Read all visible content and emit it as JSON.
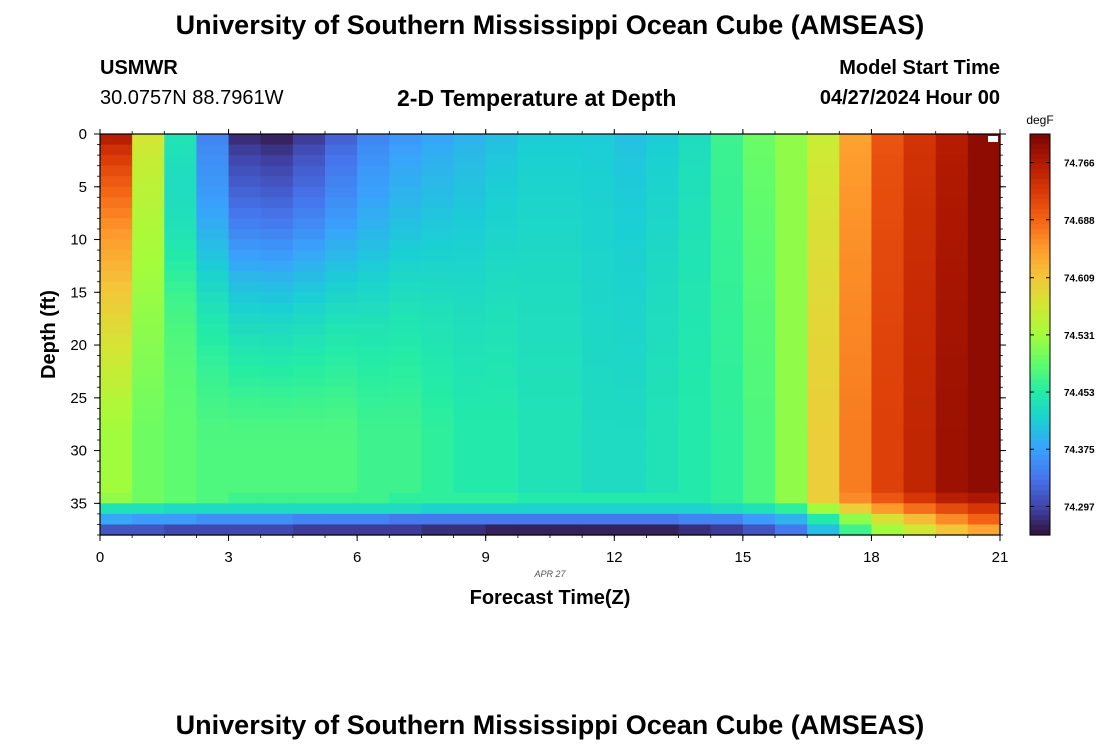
{
  "header": {
    "title": "University of Southern Mississippi Ocean Cube (AMSEAS)",
    "station": "USMWR",
    "coords": "30.0757N  88.7961W",
    "subtitle": "2-D Temperature at Depth",
    "model_start_label": "Model Start Time",
    "model_start_value": "04/27/2024 Hour 00"
  },
  "footer": {
    "title": "University of Southern Mississippi Ocean Cube (AMSEAS)"
  },
  "chart_data": {
    "type": "heatmap",
    "title": "2-D Temperature at Depth",
    "xlabel": "Forecast Time(Z)",
    "ylabel": "Depth (ft)",
    "x_date_label": "APR 27",
    "xlim": [
      0,
      21
    ],
    "ylim": [
      0,
      38
    ],
    "x_ticks": [
      0,
      3,
      6,
      9,
      12,
      15,
      18,
      21
    ],
    "y_ticks": [
      0,
      5,
      10,
      15,
      20,
      25,
      30,
      35
    ],
    "colorbar": {
      "unit": "degF",
      "min": 74.258,
      "max": 74.805,
      "ticks": [
        "74.766",
        "74.688",
        "74.609",
        "74.531",
        "74.453",
        "74.375",
        "74.297"
      ]
    },
    "colormap": [
      "#30123b",
      "#4145ab",
      "#4675ed",
      "#39a2fc",
      "#1bcfd4",
      "#24eca6",
      "#61fc6c",
      "#a4fc3b",
      "#d1e834",
      "#f3c63a",
      "#fe9b2d",
      "#f36315",
      "#d93806",
      "#b11901",
      "#7a0402"
    ],
    "time_steps": [
      0,
      0.75,
      1.5,
      2.25,
      3,
      3.75,
      4.5,
      5.25,
      6,
      6.75,
      7.5,
      8.25,
      9,
      9.75,
      10.5,
      11.25,
      12,
      12.75,
      13.5,
      14.25,
      15,
      15.75,
      16.5,
      17.25,
      18,
      18.75,
      19.5,
      20.25
    ],
    "depth_levels": [
      0,
      34,
      35,
      36,
      37,
      38
    ],
    "profile_top_degF": [
      74.78,
      74.58,
      74.47,
      74.37,
      74.29,
      74.28,
      74.3,
      74.33,
      74.36,
      74.37,
      74.38,
      74.39,
      74.4,
      74.41,
      74.41,
      74.41,
      74.4,
      74.41,
      74.43,
      74.47,
      74.5,
      74.52,
      74.56,
      74.64,
      74.7,
      74.73,
      74.76,
      74.79
    ],
    "profile_bottom_degF": [
      74.53,
      74.5,
      74.49,
      74.48,
      74.48,
      74.48,
      74.48,
      74.48,
      74.47,
      74.47,
      74.46,
      74.45,
      74.45,
      74.44,
      74.44,
      74.43,
      74.43,
      74.44,
      74.45,
      74.46,
      74.48,
      74.52,
      74.6,
      74.67,
      74.72,
      74.75,
      74.78,
      74.79
    ],
    "band_35ft_degF": [
      74.52,
      74.5,
      74.49,
      74.48,
      74.47,
      74.47,
      74.47,
      74.47,
      74.47,
      74.46,
      74.46,
      74.46,
      74.46,
      74.45,
      74.45,
      74.45,
      74.45,
      74.45,
      74.45,
      74.46,
      74.48,
      74.52,
      74.6,
      74.66,
      74.7,
      74.73,
      74.76,
      74.77
    ],
    "band_36ft_degF": [
      74.44,
      74.44,
      74.43,
      74.43,
      74.43,
      74.43,
      74.43,
      74.43,
      74.43,
      74.43,
      74.42,
      74.42,
      74.42,
      74.42,
      74.42,
      74.42,
      74.42,
      74.42,
      74.42,
      74.43,
      74.44,
      74.46,
      74.53,
      74.6,
      74.65,
      74.68,
      74.71,
      74.73
    ],
    "band_37ft_degF": [
      74.38,
      74.37,
      74.37,
      74.36,
      74.36,
      74.36,
      74.35,
      74.35,
      74.35,
      74.34,
      74.34,
      74.34,
      74.34,
      74.34,
      74.34,
      74.34,
      74.34,
      74.34,
      74.35,
      74.35,
      74.37,
      74.39,
      74.45,
      74.52,
      74.58,
      74.62,
      74.66,
      74.69
    ],
    "band_38ft_degF": [
      74.31,
      74.31,
      74.3,
      74.3,
      74.3,
      74.3,
      74.29,
      74.29,
      74.29,
      74.29,
      74.28,
      74.28,
      74.27,
      74.27,
      74.27,
      74.27,
      74.27,
      74.27,
      74.28,
      74.29,
      74.31,
      74.34,
      74.4,
      74.47,
      74.53,
      74.57,
      74.61,
      74.64
    ]
  }
}
